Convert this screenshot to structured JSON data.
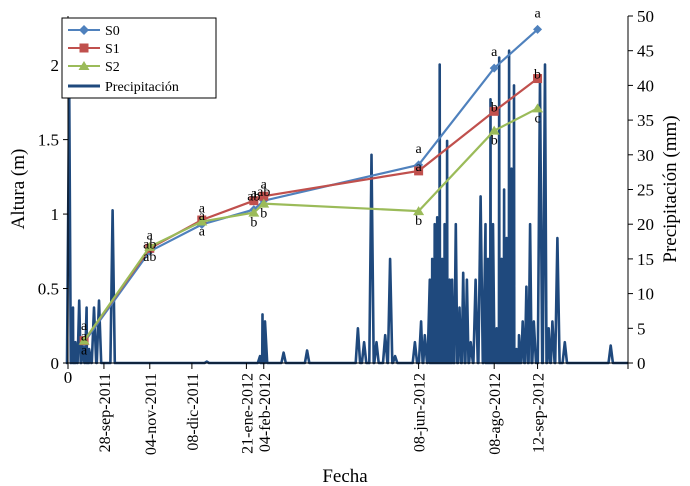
{
  "chart_data": {
    "type": "line",
    "xlabel": "Fecha",
    "ylabel": "Altura (m)",
    "y2label": "Precipitación (mm)",
    "ylim": [
      0,
      2.33
    ],
    "y2lim": [
      0,
      50
    ],
    "yticks": [
      0,
      0.5,
      1,
      1.5,
      2
    ],
    "y2ticks": [
      0,
      5,
      10,
      15,
      20,
      25,
      30,
      35,
      40,
      45,
      50
    ],
    "xlim": [
      "2011-08-30",
      "2012-11-24"
    ],
    "xticks": [
      "2011-08-30",
      "2011-09-28",
      "2011-11-04",
      "2011-12-08",
      "2012-01-21",
      "2012-02-04",
      "2012-06-08",
      "2012-08-08",
      "2012-09-12",
      "2012-11-24"
    ],
    "xtick_labels": [
      "0",
      "28-sep-2011",
      "04-nov-2011",
      "08-dic-2011",
      "21-ene-2012",
      "04-feb-2012",
      "08-jun-2012",
      "08-ago-2012",
      "12-sep-2012",
      ""
    ],
    "legend_position": "top-left",
    "series": [
      {
        "name": "S0",
        "color": "#4F81BD",
        "marker": "diamond",
        "x": [
          "2011-09-12",
          "2011-11-04",
          "2011-12-16",
          "2012-01-27",
          "2012-02-04",
          "2012-06-08",
          "2012-08-08",
          "2012-09-12"
        ],
        "y": [
          0.14,
          0.75,
          0.93,
          1.03,
          1.09,
          1.33,
          1.98,
          2.24
        ],
        "labels": [
          "a",
          "a",
          "a",
          "a",
          "a",
          "a",
          "a",
          "a"
        ]
      },
      {
        "name": "S1",
        "color": "#C0504D",
        "marker": "square",
        "x": [
          "2011-09-12",
          "2011-11-04",
          "2011-12-16",
          "2012-01-27",
          "2012-02-04",
          "2012-06-08",
          "2012-08-08",
          "2012-09-12"
        ],
        "y": [
          0.15,
          0.77,
          0.96,
          1.09,
          1.12,
          1.29,
          1.69,
          1.91
        ],
        "labels": [
          "a",
          "ab",
          "a",
          "ab",
          "ab",
          "a",
          "b",
          "b"
        ]
      },
      {
        "name": "S2",
        "color": "#9BBB59",
        "marker": "triangle",
        "x": [
          "2011-09-12",
          "2011-11-04",
          "2011-12-16",
          "2012-01-27",
          "2012-02-04",
          "2012-06-08",
          "2012-08-08",
          "2012-09-12"
        ],
        "y": [
          0.15,
          0.78,
          0.95,
          1.01,
          1.07,
          1.02,
          1.56,
          1.71
        ],
        "labels": [
          "a",
          "ab",
          "a",
          "b",
          "b",
          "b",
          "b",
          "c"
        ]
      }
    ],
    "precipitation": {
      "name": "Precipitación",
      "color": "#1F497D",
      "x": [
        "2011-08-31",
        "2011-09-03",
        "2011-09-05",
        "2011-09-08",
        "2011-09-11",
        "2011-09-14",
        "2011-09-16",
        "2011-09-20",
        "2011-09-24",
        "2011-10-05",
        "2011-12-20",
        "2012-02-01",
        "2012-02-03",
        "2012-02-05",
        "2012-02-20",
        "2012-03-10",
        "2012-04-20",
        "2012-04-25",
        "2012-05-01",
        "2012-05-05",
        "2012-05-12",
        "2012-05-16",
        "2012-05-20",
        "2012-06-05",
        "2012-06-10",
        "2012-06-13",
        "2012-06-17",
        "2012-06-19",
        "2012-06-21",
        "2012-06-23",
        "2012-06-25",
        "2012-06-27",
        "2012-06-29",
        "2012-07-01",
        "2012-07-03",
        "2012-07-05",
        "2012-07-08",
        "2012-07-11",
        "2012-07-14",
        "2012-07-17",
        "2012-07-20",
        "2012-07-24",
        "2012-07-28",
        "2012-08-01",
        "2012-08-03",
        "2012-08-05",
        "2012-08-07",
        "2012-08-10",
        "2012-08-12",
        "2012-08-14",
        "2012-08-16",
        "2012-08-18",
        "2012-08-20",
        "2012-08-22",
        "2012-08-24",
        "2012-08-26",
        "2012-08-28",
        "2012-08-31",
        "2012-09-03",
        "2012-09-06",
        "2012-09-09",
        "2012-09-14",
        "2012-09-18",
        "2012-09-21",
        "2012-09-24",
        "2012-09-28",
        "2012-10-04",
        "2012-11-10"
      ],
      "y": [
        40,
        8,
        3,
        9,
        3,
        8,
        2,
        8,
        9,
        22,
        0.2,
        1,
        7,
        6,
        1.5,
        1.8,
        5,
        3,
        30,
        3,
        4,
        15,
        1,
        3,
        6,
        4,
        12,
        15,
        20,
        21,
        43,
        15,
        20,
        32,
        12,
        12,
        20,
        8,
        13,
        12,
        3,
        12,
        24,
        20,
        15,
        38,
        20,
        5,
        44,
        15,
        25,
        18,
        45,
        28,
        40,
        2,
        4,
        6,
        11,
        20,
        6,
        41,
        43,
        5,
        6,
        18,
        3,
        2.5
      ]
    }
  }
}
